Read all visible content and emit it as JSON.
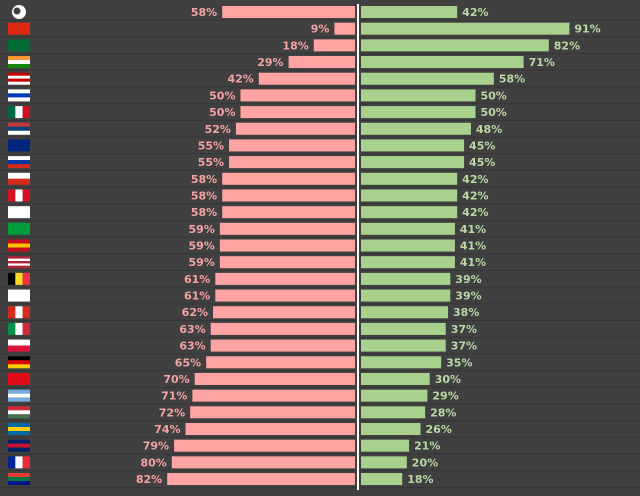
{
  "chart_data": {
    "type": "diverging-bar",
    "categories": [
      null,
      null,
      null,
      null,
      null,
      null,
      null,
      null,
      null,
      null,
      null,
      null,
      null,
      null,
      null,
      null,
      null,
      null,
      null,
      null,
      null,
      null,
      null,
      null,
      null,
      null,
      null,
      null,
      null
    ],
    "xlim": [
      0,
      100
    ],
    "series": [
      {
        "color": "#ffa3a3",
        "label_color": "#f4a3a3",
        "values": [
          58,
          9,
          18,
          29,
          42,
          50,
          50,
          52,
          55,
          55,
          58,
          58,
          58,
          59,
          59,
          59,
          61,
          61,
          62,
          63,
          63,
          65,
          70,
          71,
          72,
          74,
          79,
          80,
          82
        ],
        "value_labels": [
          "58%",
          "9%",
          "18%",
          "29%",
          "42%",
          "50%",
          "50%",
          "52%",
          "55%",
          "55%",
          "58%",
          "58%",
          "58%",
          "59%",
          "59%",
          "59%",
          "61%",
          "61%",
          "62%",
          "63%",
          "63%",
          "65%",
          "70%",
          "71%",
          "72%",
          "74%",
          "79%",
          "80%",
          "82%"
        ]
      },
      {
        "color": "#a9d18e",
        "label_color": "#b9d8a4",
        "values": [
          42,
          91,
          82,
          71,
          58,
          50,
          50,
          48,
          45,
          45,
          42,
          42,
          42,
          41,
          41,
          41,
          39,
          39,
          38,
          37,
          37,
          35,
          30,
          29,
          28,
          26,
          21,
          20,
          18
        ],
        "value_labels": [
          "42%",
          "91%",
          "82%",
          "71%",
          "58%",
          "50%",
          "50%",
          "48%",
          "45%",
          "45%",
          "42%",
          "42%",
          "42%",
          "41%",
          "41%",
          "41%",
          "39%",
          "39%",
          "38%",
          "37%",
          "37%",
          "35%",
          "30%",
          "29%",
          "28%",
          "26%",
          "21%",
          "20%",
          "18%"
        ]
      }
    ]
  }
}
